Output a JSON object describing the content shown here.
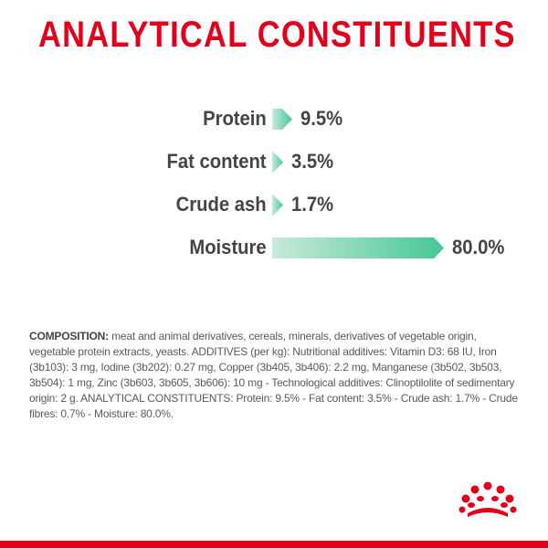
{
  "title": "ANALYTICAL CONSTITUENTS",
  "colors": {
    "brand_red": "#e2001a",
    "bar_dark_green": "#44c895",
    "bar_light_green": "#c8ead8",
    "text_dark": "#444444"
  },
  "nutrients": [
    {
      "label": "Protein",
      "value": "9.5%",
      "percent": 9.5
    },
    {
      "label": "Fat content",
      "value": "3.5%",
      "percent": 3.5
    },
    {
      "label": "Crude ash",
      "value": "1.7%",
      "percent": 1.7
    },
    {
      "label": "Moisture",
      "value": "80.0%",
      "percent": 80.0
    }
  ],
  "composition": {
    "label": "COMPOSITION:",
    "text": " meat and animal derivatives, cereals, minerals, derivatives of vegetable origin, vegetable protein extracts, yeasts. ADDITIVES (per kg): Nutritional additives: Vitamin D3: 68 IU, Iron (3b103): 3 mg, Iodine (3b202): 0.27 mg, Copper (3b405, 3b406): 2.2 mg, Manganese (3b502, 3b503, 3b504): 1 mg, Zinc (3b603, 3b605, 3b606): 10 mg - Technological additives: Clinoptilolite of sedimentary origin: 2 g. ANALYTICAL CONSTITUENTS: Protein: 9.5% - Fat content: 3.5% - Crude ash: 1.7% - Crude fibres: 0.7% - Moisture: 80.0%."
  },
  "logo": {
    "name": "royal-canin-crown-logo"
  }
}
